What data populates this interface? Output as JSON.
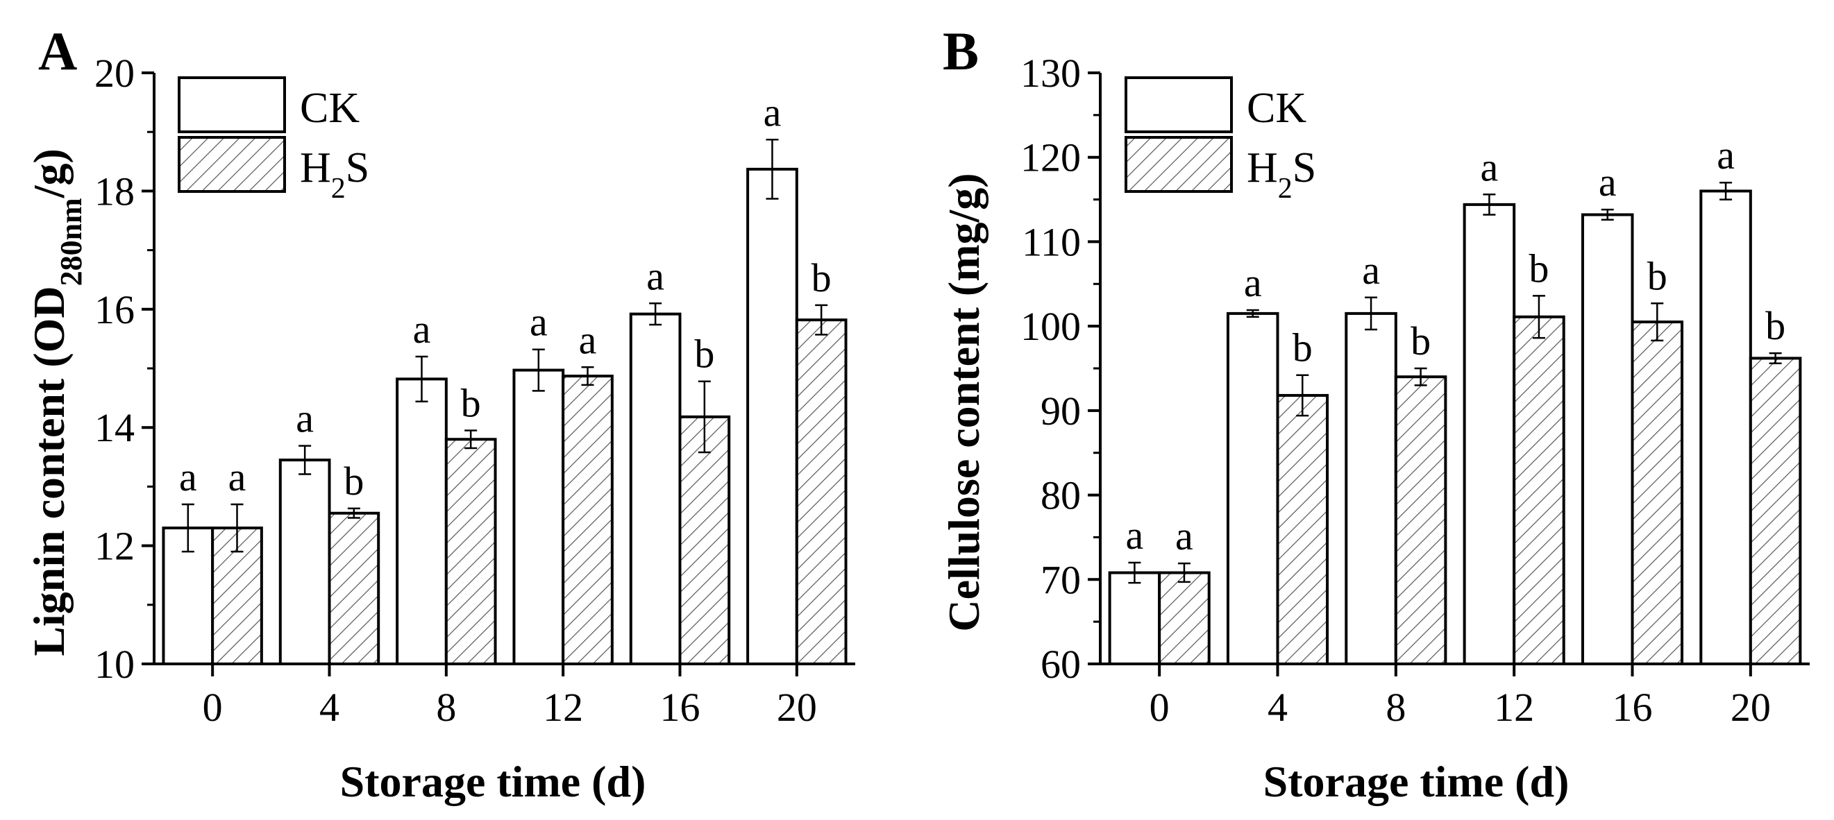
{
  "chart_data": [
    {
      "panel": "A",
      "type": "bar",
      "xlabel": "Storage time (d)",
      "ylabel": "Lignin content (OD280nm/g)",
      "ylabel_parts": {
        "main": "Lignin content (OD",
        "sub": "280nm",
        "tail": "/g)"
      },
      "ylim": [
        10,
        20
      ],
      "yticks": [
        "10",
        "12",
        "14",
        "16",
        "18",
        "20"
      ],
      "categories": [
        "0",
        "4",
        "8",
        "12",
        "16",
        "20"
      ],
      "series": [
        {
          "name": "CK",
          "values": [
            12.3,
            13.45,
            14.82,
            14.97,
            15.92,
            18.37
          ],
          "errors": [
            0.4,
            0.24,
            0.38,
            0.35,
            0.18,
            0.5
          ],
          "letters": [
            "a",
            "a",
            "a",
            "a",
            "a",
            "a"
          ]
        },
        {
          "name": "H2S",
          "values": [
            12.3,
            12.55,
            13.8,
            14.87,
            14.18,
            15.82
          ],
          "errors": [
            0.4,
            0.08,
            0.15,
            0.15,
            0.6,
            0.25
          ],
          "letters": [
            "a",
            "b",
            "b",
            "a",
            "b",
            "b"
          ]
        }
      ],
      "legend": {
        "items": [
          "CK",
          "H2S"
        ],
        "placement": "top-left"
      }
    },
    {
      "panel": "B",
      "type": "bar",
      "xlabel": "Storage time (d)",
      "ylabel": "Cellulose content (mg/g)",
      "ylim": [
        60,
        130
      ],
      "yticks": [
        "60",
        "70",
        "80",
        "90",
        "100",
        "110",
        "120",
        "130"
      ],
      "categories": [
        "0",
        "4",
        "8",
        "12",
        "16",
        "20"
      ],
      "series": [
        {
          "name": "CK",
          "values": [
            70.8,
            101.5,
            101.5,
            114.4,
            113.2,
            116.0
          ],
          "errors": [
            1.2,
            0.4,
            1.9,
            1.2,
            0.6,
            1.0
          ],
          "letters": [
            "a",
            "a",
            "a",
            "a",
            "a",
            "a"
          ]
        },
        {
          "name": "H2S",
          "values": [
            70.8,
            91.8,
            94.0,
            101.1,
            100.5,
            96.2
          ],
          "errors": [
            1.1,
            2.4,
            1.0,
            2.5,
            2.2,
            0.6
          ],
          "letters": [
            "a",
            "b",
            "b",
            "b",
            "b",
            "b"
          ]
        }
      ],
      "legend": {
        "items": [
          "CK",
          "H2S"
        ],
        "placement": "top-left"
      }
    }
  ]
}
